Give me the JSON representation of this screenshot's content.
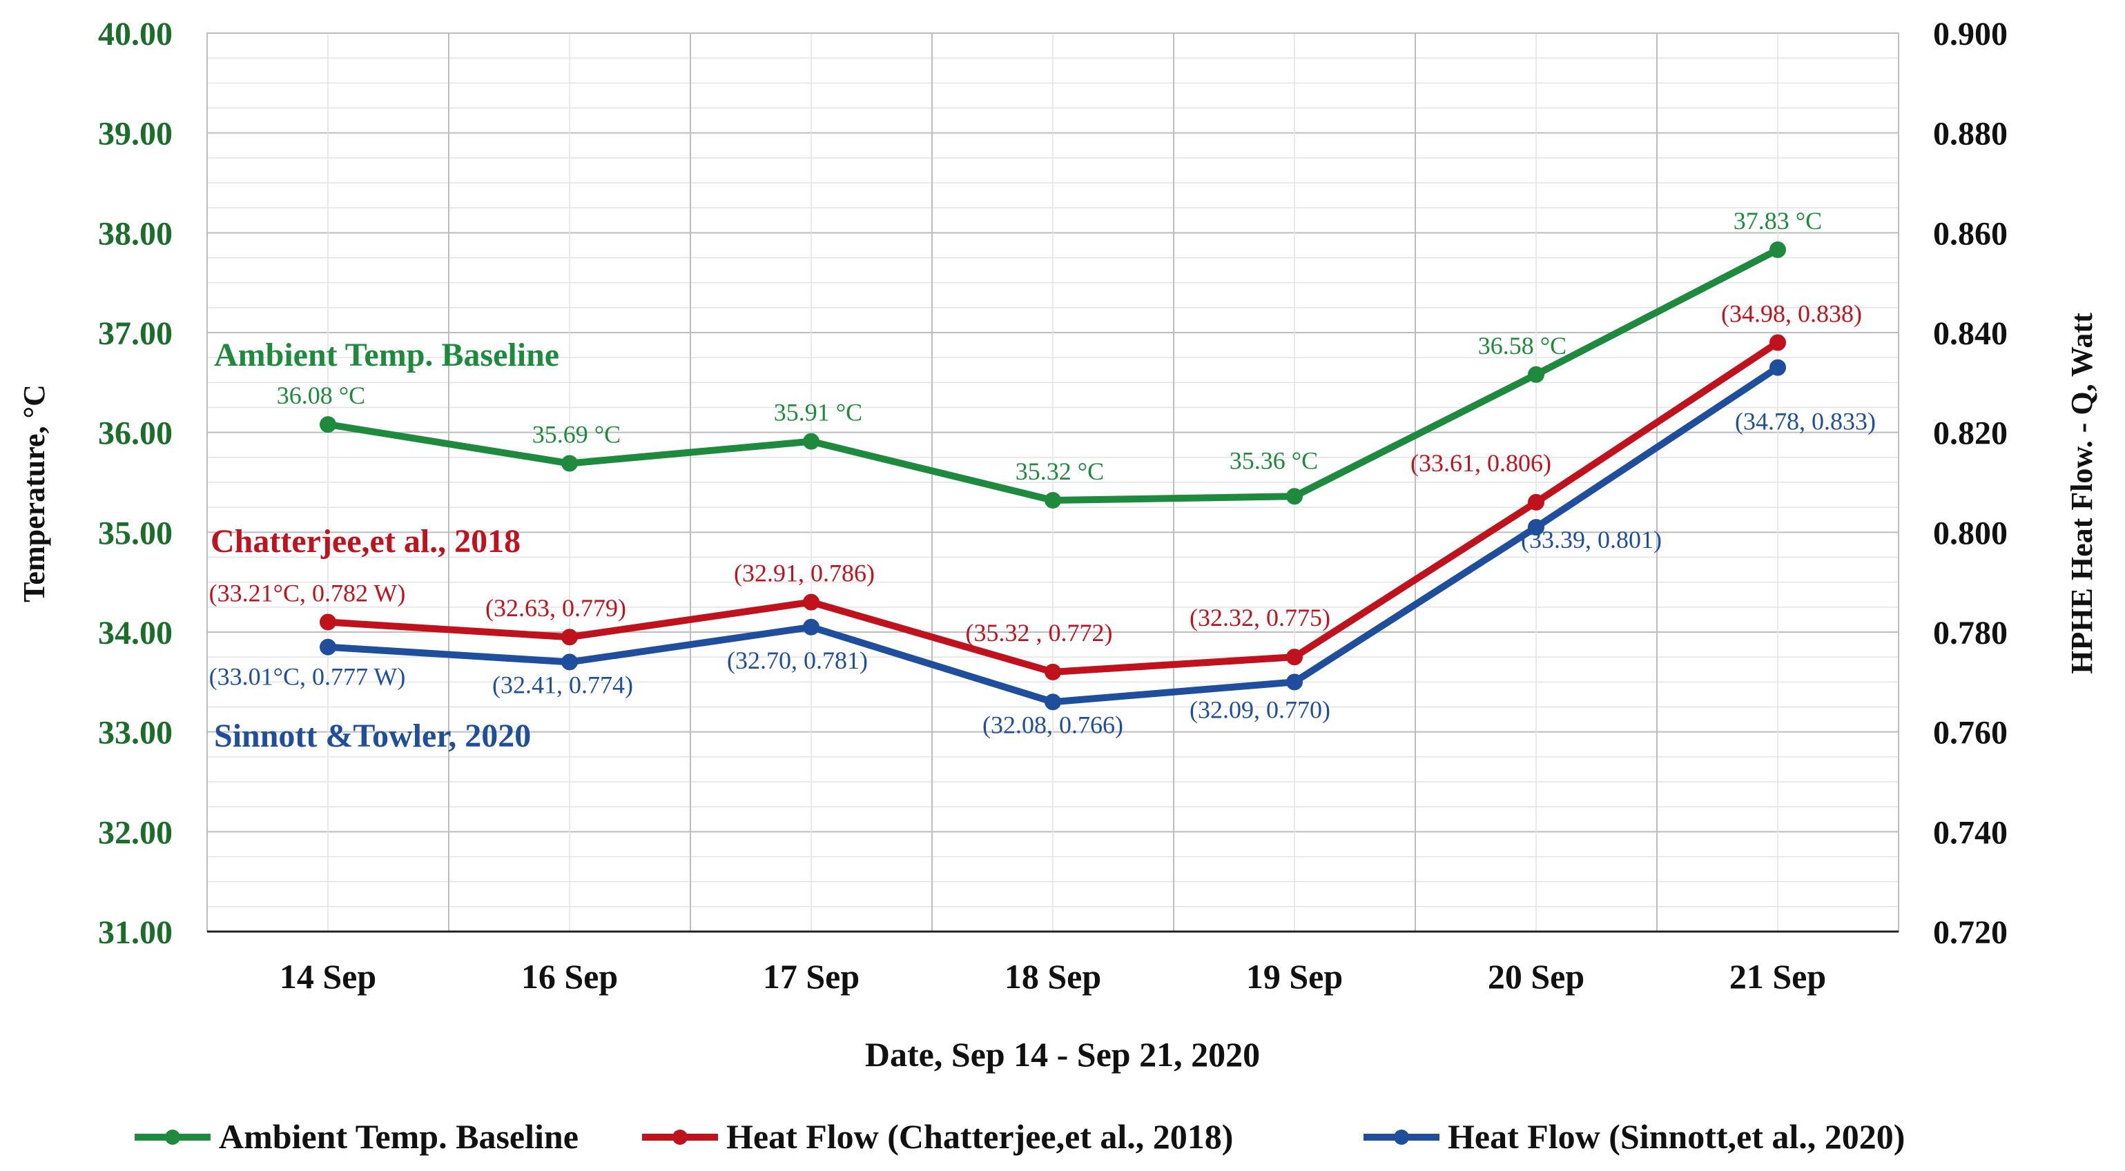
{
  "chart_data": {
    "type": "line",
    "categories": [
      "14 Sep",
      "16 Sep",
      "17 Sep",
      "18 Sep",
      "19 Sep",
      "20 Sep",
      "21 Sep"
    ],
    "xlabel": "Date, Sep 14 - Sep 21, 2020",
    "ylabel_left": "Temperature, °C",
    "ylabel_right": "HPHE Heat Flow. - Q, Watt",
    "y_left": {
      "min": 31.0,
      "max": 40.0,
      "step": 1.0,
      "ticks": [
        "31.00",
        "32.00",
        "33.00",
        "34.00",
        "35.00",
        "36.00",
        "37.00",
        "38.00",
        "39.00",
        "40.00"
      ]
    },
    "y_right": {
      "min": 0.72,
      "max": 0.9,
      "step": 0.02,
      "ticks": [
        "0.720",
        "0.740",
        "0.760",
        "0.780",
        "0.800",
        "0.820",
        "0.840",
        "0.860",
        "0.880",
        "0.900"
      ]
    },
    "grid": true,
    "legend_position": "bottom",
    "series": [
      {
        "name": "Ambient Temp. Baseline",
        "axis": "left",
        "color": "#1e8a3e",
        "values": [
          36.08,
          35.69,
          35.91,
          35.32,
          35.36,
          36.58,
          37.83
        ],
        "labels": [
          "36.08 °C",
          "35.69 °C",
          "35.91 °C",
          "35.32 °C",
          "35.36 °C",
          "36.58 °C",
          "37.83 °C"
        ],
        "inline_label": "Ambient Temp. Baseline"
      },
      {
        "name": "Heat Flow (Chatterjee,et al., 2018)",
        "axis": "right",
        "color": "#c0121c",
        "values": [
          0.782,
          0.779,
          0.786,
          0.772,
          0.775,
          0.806,
          0.838
        ],
        "labels": [
          "(33.21°C, 0.782 W)",
          "(32.63, 0.779)",
          "(32.91, 0.786)",
          "(35.32 , 0.772)",
          "(32.32, 0.775)",
          "(33.61, 0.806)",
          "(34.98, 0.838)"
        ],
        "inline_label": "Chatterjee,et al., 2018"
      },
      {
        "name": "Heat Flow (Sinnott,et al., 2020)",
        "axis": "right",
        "color": "#1f4e9c",
        "values": [
          0.777,
          0.774,
          0.781,
          0.766,
          0.77,
          0.801,
          0.833
        ],
        "labels": [
          "(33.01°C, 0.777 W)",
          "(32.41, 0.774)",
          "(32.70, 0.781)",
          "(32.08, 0.766)",
          "(32.09, 0.770)",
          "(33.39, 0.801)",
          "(34.78, 0.833)"
        ],
        "inline_label": "Sinnott &Towler, 2020"
      }
    ]
  }
}
